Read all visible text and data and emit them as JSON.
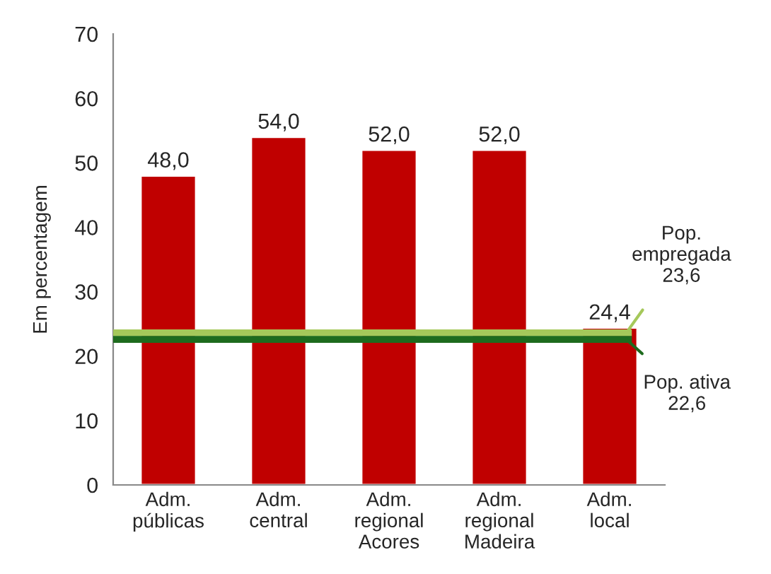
{
  "chart_data": {
    "type": "bar",
    "ylabel": "Em percentagem",
    "categories": [
      "Adm.\npúblicas",
      "Adm.\ncentral",
      "Adm.\nregional\nAcores",
      "Adm.\nregional\nMadeira",
      "Adm.\nlocal"
    ],
    "values": [
      48.0,
      54.0,
      52.0,
      52.0,
      24.4
    ],
    "color": "#c00000",
    "value_labels": [
      "48,0",
      "54,0",
      "52,0",
      "52,0",
      "24,4"
    ],
    "ylim": [
      0,
      70
    ],
    "yticks": [
      0,
      10,
      20,
      30,
      40,
      50,
      60,
      70
    ],
    "grid": false,
    "ref_lines": [
      {
        "axis": "y",
        "value": 23.6,
        "label": "Pop.\nempregada\n23,6",
        "color": "#a5c85a"
      },
      {
        "axis": "y",
        "value": 22.6,
        "label": "Pop. ativa\n22,6",
        "color": "#1e6b1e"
      }
    ]
  }
}
